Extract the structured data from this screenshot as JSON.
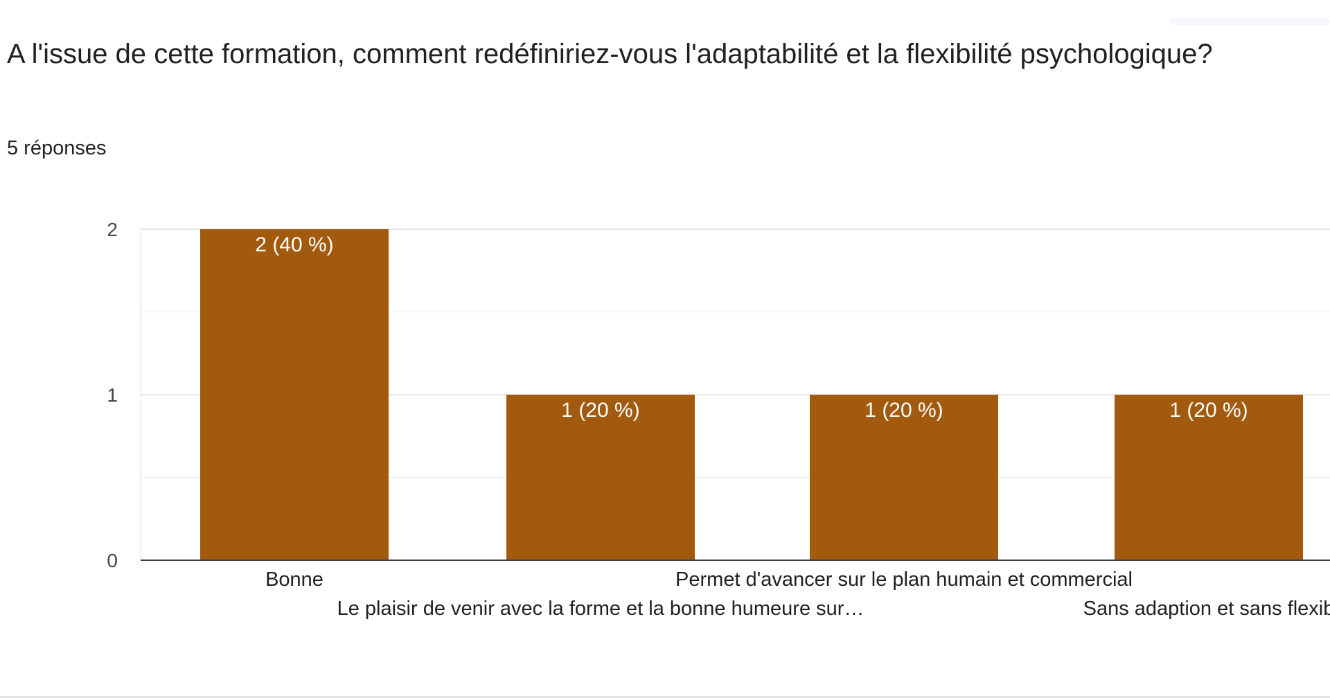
{
  "question": {
    "title": "A l'issue de cette formation, comment redéfiniriez-vous l'adaptabilité et la flexibilité psychologique?",
    "responses_label": "5 réponses"
  },
  "colors": {
    "bar": "#a25a0e",
    "bar_label": "#ffffff",
    "grid": "#ececec",
    "axis": "#3c4043",
    "text": "#202124",
    "tick": "#444444"
  },
  "chart_data": {
    "type": "bar",
    "title": "",
    "xlabel": "",
    "ylabel": "",
    "ylim": [
      0,
      2
    ],
    "yticks": [
      "0",
      "1",
      "2"
    ],
    "grid": true,
    "categories": [
      "Bonne",
      "Le plaisir de venir avec la forme et la bonne humeure sur…",
      "Permet d'avancer sur le plan humain et commercial",
      "Sans adaption et sans flexib"
    ],
    "values": [
      2,
      1,
      1,
      1
    ],
    "value_labels": [
      "2 (40 %)",
      "1 (20 %)",
      "1 (20 %)",
      "1 (20 %)"
    ]
  }
}
